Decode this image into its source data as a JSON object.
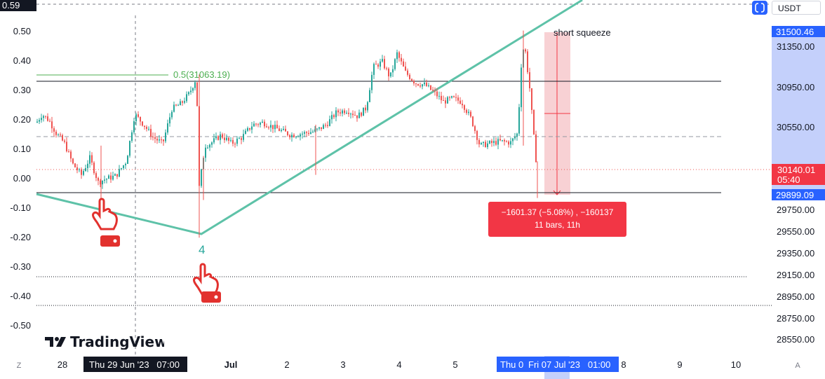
{
  "toolbar": {
    "currency": "USDT",
    "settings_icon": "tv-settings-icon"
  },
  "left_axis_top_label": "0.59",
  "brand": {
    "logo_text": "TradingView",
    "icon": "tradingview-logo-icon"
  },
  "colors": {
    "up": "#26a69a",
    "down": "#ef5350",
    "trendline": "#5ec2a8",
    "fib_line": "#4caf50",
    "measure_fill": "#f23645",
    "price_axis_highlight": "#2962ff"
  },
  "left_axis": {
    "ticks": [
      "0.50",
      "0.40",
      "0.30",
      "0.20",
      "0.10",
      "0.00",
      "-0.10",
      "-0.20",
      "-0.30",
      "-0.40",
      "-0.50"
    ]
  },
  "right_axis": {
    "ticks": [
      "31350.00",
      "30950.00",
      "30550.00",
      "29750.00",
      "29550.00",
      "29350.00",
      "29150.00",
      "28950.00",
      "28750.00",
      "28550.00"
    ],
    "labels": {
      "high": "31500.46",
      "current": "30140.01",
      "countdown": "05:40",
      "low": "29899.09"
    }
  },
  "time_axis": {
    "ticks": [
      "28",
      "Jul",
      "2",
      "3",
      "4",
      "5",
      "8",
      "9",
      "10"
    ],
    "left_letter": "Z",
    "right_letter": "A",
    "crosshair_label": "Thu 29 Jun '23   07:00",
    "measure_label_1": "Thu 0",
    "measure_label_2": "Fri 07 Jul '23   01:00"
  },
  "annotations": {
    "fib": "0.5(31063.19)",
    "wave_label": "4",
    "short_squeeze": "short squeeze",
    "measure_line1": "−1601.37 (−5.08%) , −160137",
    "measure_line2": "11 bars, 11h"
  },
  "chart_data": {
    "type": "candlestick",
    "symbol_quote": "USDT",
    "y_range": [
      28450,
      31700
    ],
    "x_range": [
      "2023-06-27",
      "2023-07-10"
    ],
    "candles_approx": [
      {
        "t": "2023-06-27",
        "o": 30700,
        "h": 30820,
        "l": 30480,
        "c": 30600
      },
      {
        "t": "2023-06-28",
        "o": 30600,
        "h": 30640,
        "l": 29890,
        "c": 30080
      },
      {
        "t": "2023-06-29",
        "o": 30080,
        "h": 30700,
        "l": 30050,
        "c": 30500
      },
      {
        "t": "2023-06-30",
        "o": 30500,
        "h": 31280,
        "l": 29550,
        "c": 30400
      },
      {
        "t": "2023-07-01",
        "o": 30400,
        "h": 30620,
        "l": 30380,
        "c": 30550
      },
      {
        "t": "2023-07-02",
        "o": 30550,
        "h": 30600,
        "l": 30250,
        "c": 30480
      },
      {
        "t": "2023-07-03",
        "o": 30480,
        "h": 31400,
        "l": 30450,
        "c": 31150
      },
      {
        "t": "2023-07-04",
        "o": 31150,
        "h": 31320,
        "l": 30870,
        "c": 30900
      },
      {
        "t": "2023-07-05",
        "o": 30900,
        "h": 30950,
        "l": 30300,
        "c": 30450
      },
      {
        "t": "2023-07-06",
        "o": 30450,
        "h": 31500,
        "l": 29900,
        "c": 30140
      }
    ],
    "horizontal_levels": [
      31063.19,
      31000,
      30450,
      30140.01,
      29899.09,
      29160,
      28840
    ],
    "measure": {
      "change": -1601.37,
      "percent": -5.08,
      "ticks": -160137,
      "bars": 11,
      "duration": "11h"
    }
  }
}
